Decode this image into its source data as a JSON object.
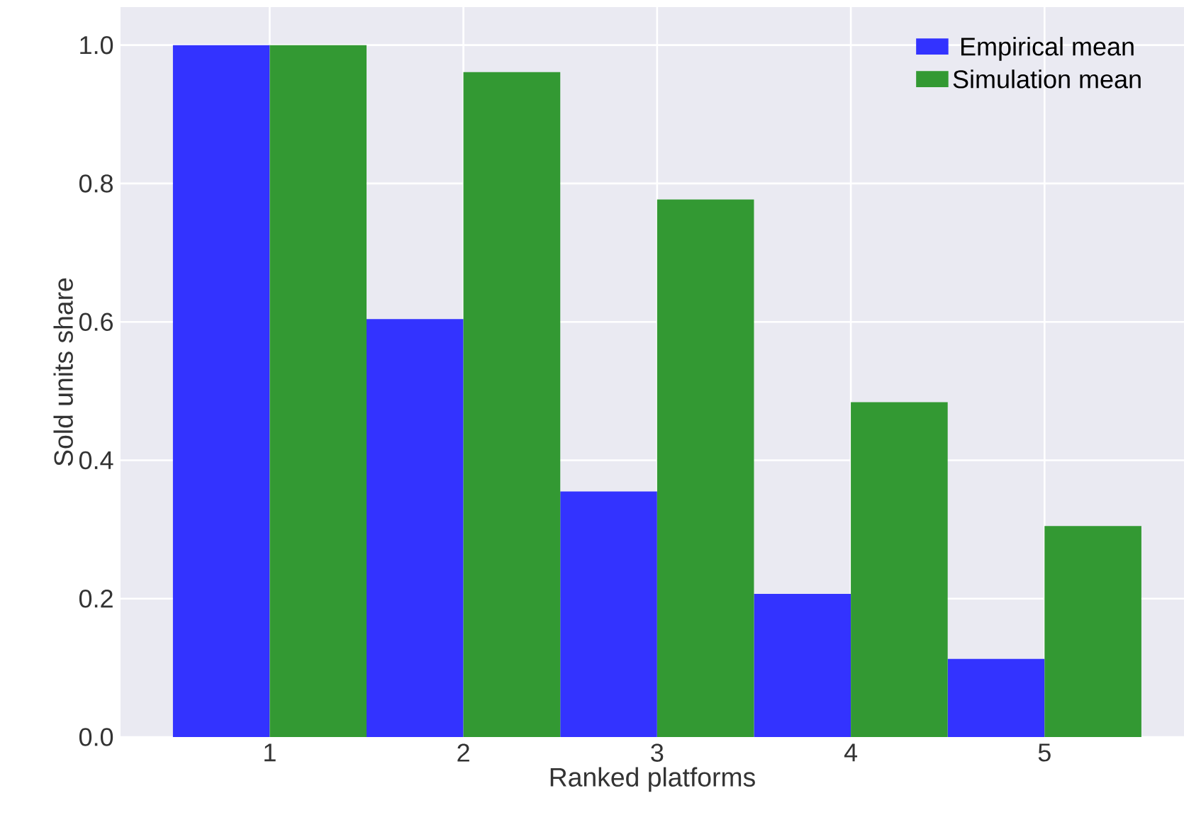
{
  "chart_data": {
    "type": "bar",
    "xlabel": "Ranked platforms",
    "ylabel": "Sold units share",
    "x": [
      1,
      2,
      3,
      4,
      5
    ],
    "series": [
      {
        "name": "Empirical mean",
        "color": "#3333ff",
        "values": [
          1.0,
          0.604,
          0.355,
          0.207,
          0.113
        ]
      },
      {
        "name": "Simulation mean",
        "color": "#339933",
        "values": [
          1.0,
          0.961,
          0.777,
          0.484,
          0.305
        ]
      }
    ],
    "xlim": [
      0.23,
      5.72
    ],
    "xticks": [
      1,
      2,
      3,
      4,
      5
    ],
    "ylim": [
      0,
      1.055
    ],
    "yticks": [
      {
        "value": 0,
        "label": "0.0"
      },
      {
        "value": 0.2,
        "label": "0.2"
      },
      {
        "value": 0.4,
        "label": "0.4"
      },
      {
        "value": 0.6,
        "label": "0.6"
      },
      {
        "value": 0.8,
        "label": "0.8"
      },
      {
        "value": 1.0,
        "label": "1.0"
      }
    ],
    "grid": true,
    "legend": "top right"
  }
}
